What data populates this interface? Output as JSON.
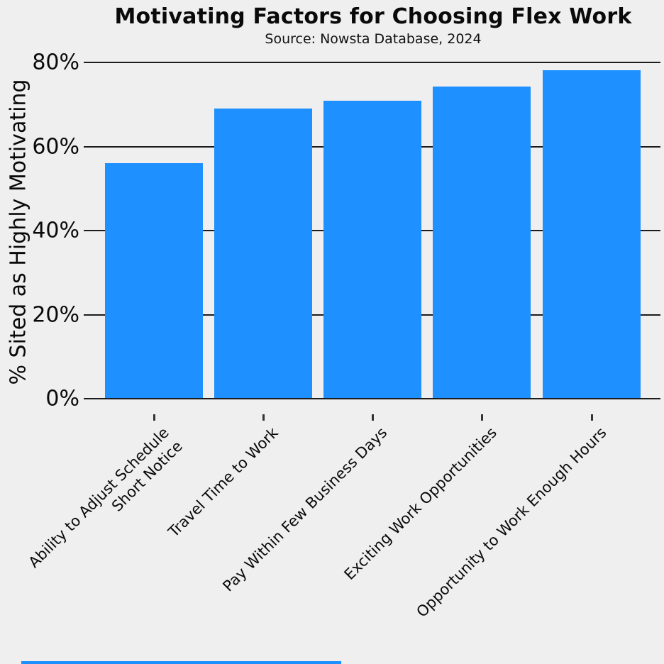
{
  "chart_data": {
    "type": "bar",
    "title": "Motivating Factors for Choosing Flex Work",
    "subtitle": "Source: Nowsta Database, 2024",
    "categories": [
      "Ability to Adjust Schedule\nShort Notice",
      "Travel Time to Work",
      "Pay Within Few Business Days",
      "Exciting Work Opportunities",
      "Opportunity to Work Enough Hours"
    ],
    "values": [
      56.2,
      69.2,
      71.0,
      74.4,
      78.3
    ],
    "xlabel": "",
    "ylabel": "% Sited as Highly Motivating",
    "ylim": [
      0,
      80
    ],
    "yticks": [
      0,
      20,
      40,
      60,
      80
    ],
    "ytick_labels": [
      "0%",
      "20%",
      "40%",
      "60%",
      "80%"
    ],
    "grid": "horizontal gridlines on",
    "legend": "none",
    "bar_color": "#1E90FF",
    "background_color": "#efefef",
    "gridline_color": "#1c1c1c",
    "text_color": "#0a0a0a"
  }
}
